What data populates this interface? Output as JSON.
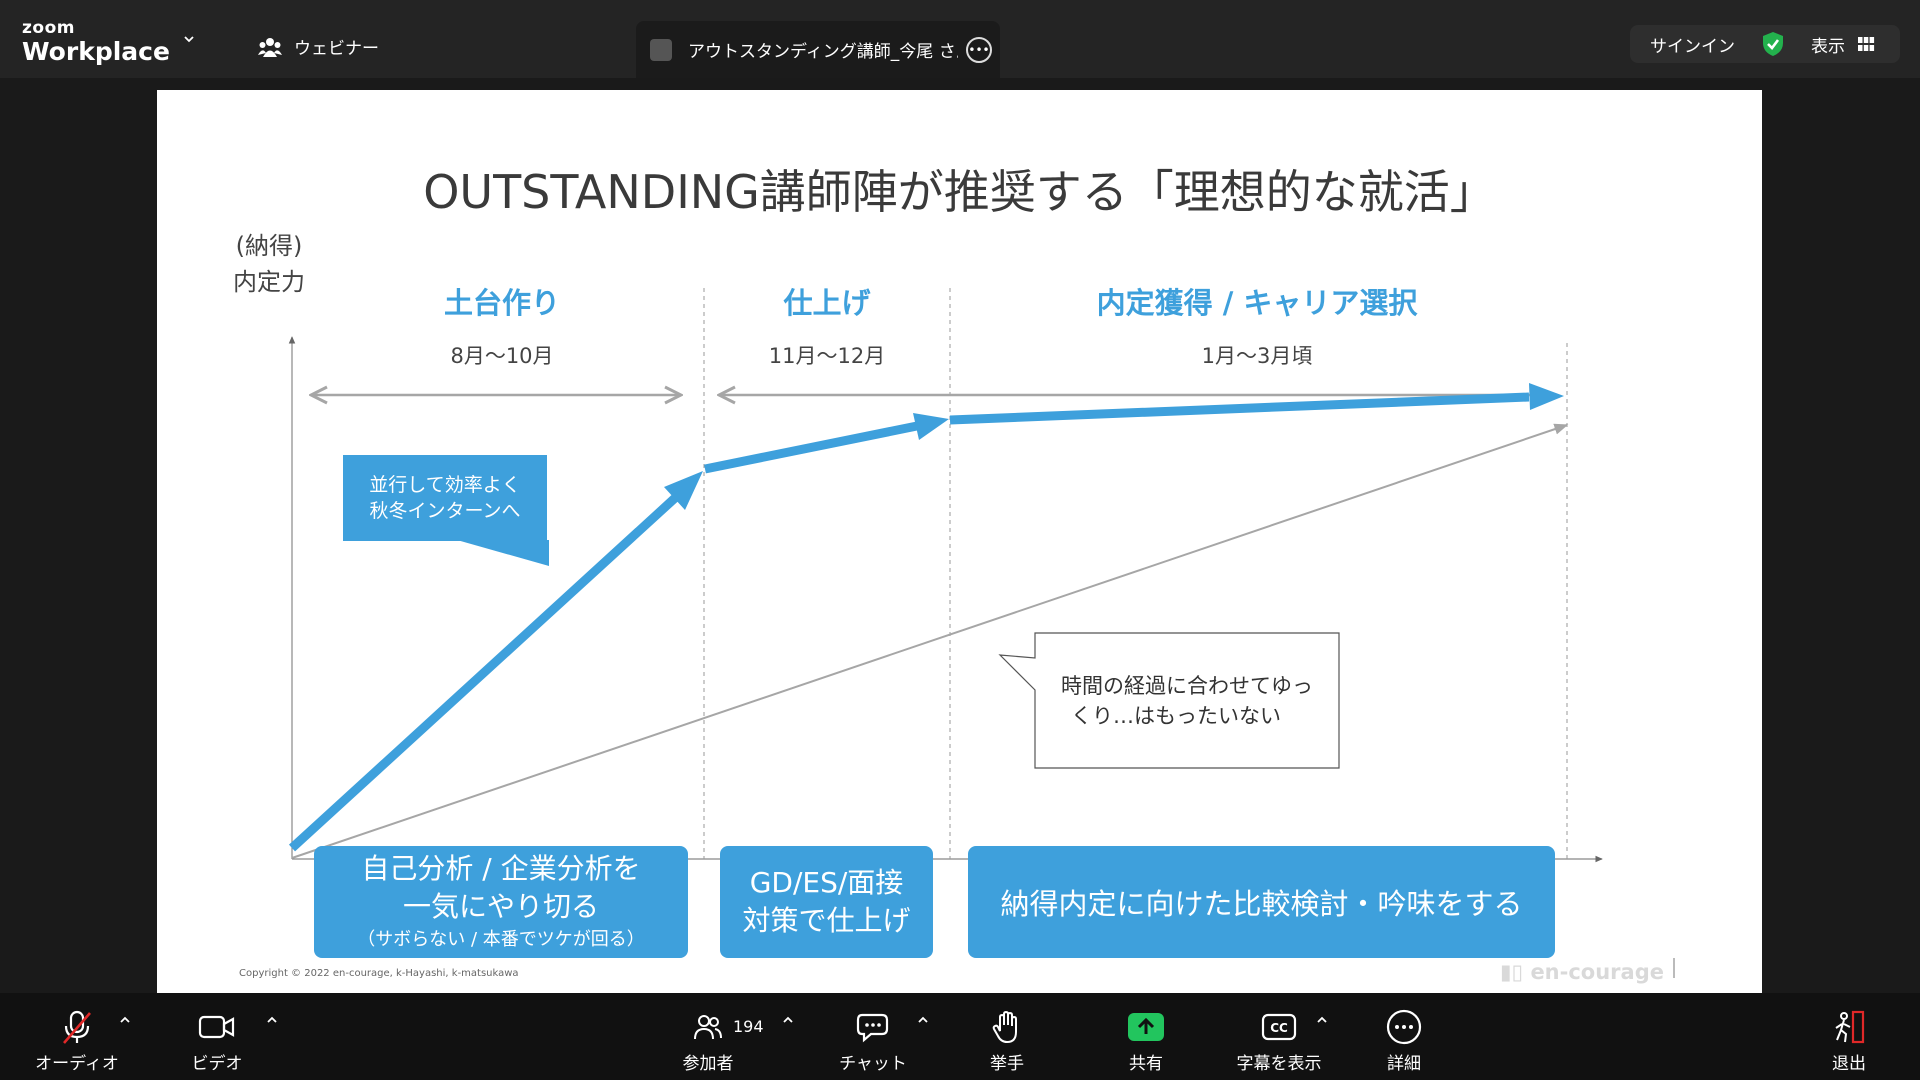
{
  "app": {
    "logo_line1": "zoom",
    "logo_line2": "Workplace"
  },
  "header": {
    "webinar_label": "ウェビナー",
    "tab_title": "アウトスタンディング講師_今尾 さんの",
    "signin": "サインイン",
    "view": "表示"
  },
  "slide": {
    "title": "OUTSTANDING講師陣が推奨する「理想的な就活」",
    "y_axis_label_1": "(納得)",
    "y_axis_label_2": "内定力",
    "phases": [
      {
        "label": "土台作り",
        "period": "8月〜10月"
      },
      {
        "label": "仕上げ",
        "period": "11月〜12月"
      },
      {
        "label": "内定獲得 / キャリア選択",
        "period": "1月〜3月頃"
      }
    ],
    "callout_blue": [
      "並行して効率よく",
      "秋冬インターンへ"
    ],
    "callout_white": [
      "時間の経過に合わせてゆっ",
      "くり…はもったいない"
    ],
    "box1": {
      "line1": "自己分析 / 企業分析を",
      "line2": "一気にやり切る",
      "line3": "（サボらない / 本番でツケが回る）"
    },
    "box2": {
      "line1": "GD/ES/面接",
      "line2": "対策で仕上げ"
    },
    "box3": "納得内定に向けた比較検討・吟味をする",
    "copyright": "Copyright © 2022 en-courage, k-Hayashi, k-matsukawa",
    "brand": "en-courage",
    "colors": {
      "accent": "#3ea0dc",
      "gray_line": "#a6a6a6"
    }
  },
  "toolbar": {
    "audio": "オーディオ",
    "video": "ビデオ",
    "participants": "参加者",
    "participant_count": "194",
    "chat": "チャット",
    "raise_hand": "挙手",
    "share": "共有",
    "captions": "字幕を表示",
    "more": "詳細",
    "leave": "退出"
  }
}
